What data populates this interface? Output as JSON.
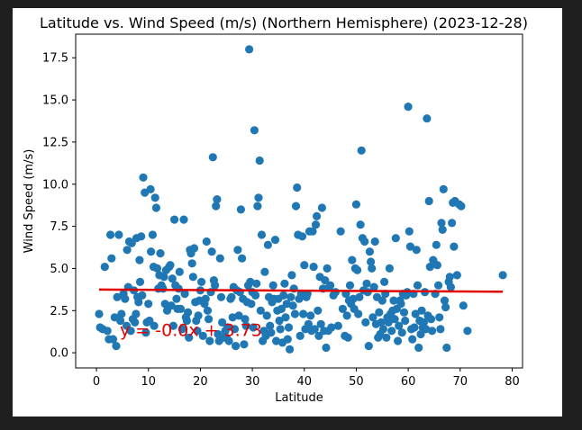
{
  "chart_data": {
    "type": "scatter",
    "title": "Latitude vs. Wind Speed (m/s) (Northern Hemisphere) (2023-12-28)",
    "xlabel": "Latitude",
    "ylabel": "Wind Speed (m/s)",
    "xlim": [
      -4,
      82
    ],
    "ylim": [
      -0.9,
      18.9
    ],
    "xticks": [
      0,
      10,
      20,
      30,
      40,
      50,
      60,
      70,
      80
    ],
    "yticks": [
      0.0,
      2.5,
      5.0,
      7.5,
      10.0,
      12.5,
      15.0,
      17.5
    ],
    "grid": false,
    "marker_color": "#1f77b4",
    "line_color": "#e00000",
    "regression": {
      "equation": "y = -0.0x + 3.73",
      "x_start": 0.5,
      "y_start": 3.75,
      "x_end": 78.2,
      "y_end": 3.62,
      "label_x": 4.5,
      "label_y": 1.0
    },
    "points": [
      [
        0.5,
        2.3
      ],
      [
        0.7,
        1.5
      ],
      [
        1.2,
        1.4
      ],
      [
        1.6,
        5.1
      ],
      [
        2.1,
        1.3
      ],
      [
        2.4,
        0.8
      ],
      [
        2.7,
        7.0
      ],
      [
        2.9,
        5.6
      ],
      [
        3.2,
        0.8
      ],
      [
        3.5,
        2.1
      ],
      [
        3.8,
        0.4
      ],
      [
        4.0,
        3.3
      ],
      [
        4.3,
        7.0
      ],
      [
        4.6,
        1.9
      ],
      [
        4.8,
        2.3
      ],
      [
        5.2,
        3.5
      ],
      [
        5.5,
        3.2
      ],
      [
        5.8,
        1.6
      ],
      [
        5.9,
        6.1
      ],
      [
        6.1,
        3.9
      ],
      [
        6.3,
        6.6
      ],
      [
        6.6,
        1.3
      ],
      [
        6.8,
        6.5
      ],
      [
        7.0,
        2.0
      ],
      [
        7.2,
        3.7
      ],
      [
        7.4,
        1.8
      ],
      [
        7.6,
        2.3
      ],
      [
        7.7,
        6.8
      ],
      [
        7.9,
        3.3
      ],
      [
        8.1,
        3.0
      ],
      [
        8.3,
        5.5
      ],
      [
        8.4,
        4.2
      ],
      [
        8.6,
        6.9
      ],
      [
        8.8,
        3.4
      ],
      [
        9.0,
        10.4
      ],
      [
        9.3,
        9.5
      ],
      [
        9.5,
        1.2
      ],
      [
        9.7,
        1.8
      ],
      [
        10.0,
        2.9
      ],
      [
        10.2,
        1.9
      ],
      [
        10.4,
        9.7
      ],
      [
        10.5,
        6.0
      ],
      [
        10.8,
        7.0
      ],
      [
        11.0,
        5.1
      ],
      [
        11.1,
        1.6
      ],
      [
        11.3,
        9.2
      ],
      [
        11.5,
        8.6
      ],
      [
        11.7,
        5.0
      ],
      [
        11.9,
        3.8
      ],
      [
        12.1,
        4.6
      ],
      [
        12.3,
        5.9
      ],
      [
        12.5,
        4.0
      ],
      [
        12.8,
        3.8
      ],
      [
        13.0,
        4.5
      ],
      [
        13.2,
        2.9
      ],
      [
        13.4,
        4.9
      ],
      [
        13.6,
        2.5
      ],
      [
        13.8,
        2.7
      ],
      [
        14.0,
        5.1
      ],
      [
        14.2,
        5.2
      ],
      [
        14.4,
        2.8
      ],
      [
        14.6,
        4.4
      ],
      [
        14.8,
        1.6
      ],
      [
        15.0,
        7.9
      ],
      [
        15.2,
        4.0
      ],
      [
        15.4,
        3.2
      ],
      [
        15.6,
        2.6
      ],
      [
        15.8,
        3.8
      ],
      [
        16.0,
        4.8
      ],
      [
        16.2,
        2.6
      ],
      [
        16.5,
        1.4
      ],
      [
        16.8,
        7.9
      ],
      [
        17.0,
        3.5
      ],
      [
        17.2,
        2.1
      ],
      [
        17.4,
        1.9
      ],
      [
        17.6,
        2.4
      ],
      [
        17.8,
        0.9
      ],
      [
        18.0,
        6.1
      ],
      [
        18.2,
        5.9
      ],
      [
        18.4,
        5.3
      ],
      [
        18.6,
        4.5
      ],
      [
        18.8,
        6.2
      ],
      [
        19.0,
        3.0
      ],
      [
        19.2,
        1.9
      ],
      [
        19.4,
        1.3
      ],
      [
        19.6,
        2.2
      ],
      [
        19.8,
        3.1
      ],
      [
        20.0,
        3.7
      ],
      [
        20.2,
        4.2
      ],
      [
        20.5,
        1.0
      ],
      [
        20.8,
        2.9
      ],
      [
        21.0,
        3.2
      ],
      [
        21.2,
        6.6
      ],
      [
        21.4,
        2.5
      ],
      [
        21.6,
        2.0
      ],
      [
        21.8,
        0.7
      ],
      [
        22.0,
        3.6
      ],
      [
        22.2,
        6.0
      ],
      [
        22.4,
        11.6
      ],
      [
        22.6,
        4.3
      ],
      [
        22.8,
        4.0
      ],
      [
        23.0,
        8.7
      ],
      [
        23.2,
        9.1
      ],
      [
        23.4,
        1.1
      ],
      [
        23.6,
        0.7
      ],
      [
        23.8,
        5.6
      ],
      [
        24.0,
        3.3
      ],
      [
        24.2,
        1.8
      ],
      [
        24.5,
        0.9
      ],
      [
        24.8,
        1.3
      ],
      [
        25.0,
        0.9
      ],
      [
        25.2,
        1.5
      ],
      [
        25.5,
        0.7
      ],
      [
        25.8,
        3.2
      ],
      [
        26.0,
        3.3
      ],
      [
        26.2,
        2.1
      ],
      [
        26.4,
        3.9
      ],
      [
        26.6,
        1.4
      ],
      [
        26.8,
        0.4
      ],
      [
        27.0,
        3.7
      ],
      [
        27.2,
        6.1
      ],
      [
        27.4,
        2.2
      ],
      [
        27.6,
        3.6
      ],
      [
        27.8,
        8.5
      ],
      [
        28.0,
        5.6
      ],
      [
        28.2,
        3.2
      ],
      [
        28.4,
        0.5
      ],
      [
        28.6,
        2.0
      ],
      [
        28.8,
        1.6
      ],
      [
        29.0,
        3.0
      ],
      [
        29.2,
        4.0
      ],
      [
        29.4,
        18.0
      ],
      [
        29.6,
        4.2
      ],
      [
        29.8,
        2.9
      ],
      [
        30.0,
        3.6
      ],
      [
        30.2,
        1.5
      ],
      [
        30.4,
        13.2
      ],
      [
        30.6,
        3.4
      ],
      [
        30.8,
        4.1
      ],
      [
        31.0,
        8.7
      ],
      [
        31.2,
        9.2
      ],
      [
        31.4,
        11.4
      ],
      [
        31.6,
        2.5
      ],
      [
        31.8,
        7.0
      ],
      [
        32.0,
        0.7
      ],
      [
        32.2,
        1.3
      ],
      [
        32.4,
        4.8
      ],
      [
        32.6,
        1.0
      ],
      [
        32.8,
        2.2
      ],
      [
        33.0,
        6.4
      ],
      [
        33.2,
        3.3
      ],
      [
        33.4,
        1.6
      ],
      [
        33.6,
        1.2
      ],
      [
        33.8,
        3.0
      ],
      [
        34.0,
        4.0
      ],
      [
        34.2,
        3.2
      ],
      [
        34.4,
        6.7
      ],
      [
        34.6,
        0.7
      ],
      [
        34.8,
        2.5
      ],
      [
        35.0,
        3.2
      ],
      [
        35.2,
        1.9
      ],
      [
        35.4,
        1.4
      ],
      [
        35.6,
        2.6
      ],
      [
        35.8,
        0.6
      ],
      [
        36.0,
        3.4
      ],
      [
        36.2,
        4.1
      ],
      [
        36.4,
        2.1
      ],
      [
        36.6,
        2.9
      ],
      [
        36.8,
        0.8
      ],
      [
        37.0,
        1.5
      ],
      [
        37.2,
        0.2
      ],
      [
        37.4,
        3.3
      ],
      [
        37.6,
        4.6
      ],
      [
        37.8,
        2.8
      ],
      [
        38.0,
        3.8
      ],
      [
        38.2,
        2.3
      ],
      [
        38.4,
        8.7
      ],
      [
        38.6,
        9.8
      ],
      [
        38.8,
        7.0
      ],
      [
        39.0,
        3.2
      ],
      [
        39.2,
        1.0
      ],
      [
        39.4,
        3.5
      ],
      [
        39.6,
        6.9
      ],
      [
        39.8,
        2.3
      ],
      [
        40.0,
        5.2
      ],
      [
        40.2,
        1.4
      ],
      [
        40.4,
        3.3
      ],
      [
        40.6,
        3.5
      ],
      [
        40.8,
        1.7
      ],
      [
        41.0,
        7.2
      ],
      [
        41.2,
        2.2
      ],
      [
        41.4,
        1.3
      ],
      [
        41.6,
        7.2
      ],
      [
        41.8,
        5.1
      ],
      [
        42.0,
        1.4
      ],
      [
        42.2,
        7.6
      ],
      [
        42.4,
        8.1
      ],
      [
        42.6,
        2.5
      ],
      [
        42.8,
        1.0
      ],
      [
        43.0,
        4.5
      ],
      [
        43.2,
        1.7
      ],
      [
        43.4,
        8.6
      ],
      [
        43.6,
        3.8
      ],
      [
        43.8,
        1.3
      ],
      [
        44.0,
        4.3
      ],
      [
        44.2,
        0.3
      ],
      [
        44.4,
        5.0
      ],
      [
        44.6,
        1.3
      ],
      [
        44.8,
        3.9
      ],
      [
        45.0,
        4.0
      ],
      [
        45.2,
        1.5
      ],
      [
        45.6,
        3.4
      ],
      [
        46.0,
        3.6
      ],
      [
        46.5,
        1.6
      ],
      [
        47.0,
        7.2
      ],
      [
        47.4,
        2.6
      ],
      [
        47.8,
        1.0
      ],
      [
        48.0,
        3.5
      ],
      [
        48.2,
        2.2
      ],
      [
        48.4,
        0.9
      ],
      [
        48.6,
        3.1
      ],
      [
        48.8,
        4.0
      ],
      [
        49.0,
        2.9
      ],
      [
        49.2,
        5.5
      ],
      [
        49.4,
        3.2
      ],
      [
        49.6,
        2.6
      ],
      [
        49.8,
        5.0
      ],
      [
        50.0,
        8.8
      ],
      [
        50.2,
        4.9
      ],
      [
        50.4,
        2.3
      ],
      [
        50.6,
        3.3
      ],
      [
        50.8,
        7.6
      ],
      [
        51.0,
        12.0
      ],
      [
        51.2,
        6.8
      ],
      [
        51.4,
        3.7
      ],
      [
        51.6,
        6.6
      ],
      [
        51.8,
        1.8
      ],
      [
        52.0,
        4.1
      ],
      [
        52.2,
        3.6
      ],
      [
        52.4,
        0.4
      ],
      [
        52.6,
        6.0
      ],
      [
        52.8,
        5.4
      ],
      [
        53.0,
        5.0
      ],
      [
        53.2,
        2.1
      ],
      [
        53.4,
        3.9
      ],
      [
        53.6,
        6.6
      ],
      [
        53.8,
        1.7
      ],
      [
        54.0,
        3.3
      ],
      [
        54.2,
        0.9
      ],
      [
        54.4,
        2.4
      ],
      [
        54.6,
        1.1
      ],
      [
        54.8,
        1.8
      ],
      [
        55.0,
        3.1
      ],
      [
        55.2,
        1.4
      ],
      [
        55.4,
        4.2
      ],
      [
        55.6,
        3.5
      ],
      [
        55.8,
        0.9
      ],
      [
        56.0,
        2.1
      ],
      [
        56.2,
        1.8
      ],
      [
        56.4,
        5.0
      ],
      [
        56.6,
        2.3
      ],
      [
        56.8,
        1.3
      ],
      [
        57.0,
        2.5
      ],
      [
        57.2,
        3.1
      ],
      [
        57.4,
        2.0
      ],
      [
        57.6,
        6.8
      ],
      [
        57.8,
        2.6
      ],
      [
        58.0,
        0.7
      ],
      [
        58.2,
        1.6
      ],
      [
        58.4,
        3.1
      ],
      [
        58.6,
        2.9
      ],
      [
        58.8,
        1.2
      ],
      [
        59.0,
        3.5
      ],
      [
        59.2,
        2.4
      ],
      [
        59.4,
        1.9
      ],
      [
        59.6,
        3.4
      ],
      [
        59.8,
        3.6
      ],
      [
        60.0,
        14.6
      ],
      [
        60.2,
        7.2
      ],
      [
        60.4,
        6.3
      ],
      [
        60.6,
        1.4
      ],
      [
        60.8,
        0.8
      ],
      [
        61.0,
        3.5
      ],
      [
        61.2,
        1.5
      ],
      [
        61.4,
        2.3
      ],
      [
        61.6,
        6.1
      ],
      [
        61.8,
        4.0
      ],
      [
        62.0,
        0.3
      ],
      [
        62.2,
        1.9
      ],
      [
        62.4,
        1.1
      ],
      [
        62.6,
        2.5
      ],
      [
        62.8,
        1.5
      ],
      [
        63.0,
        1.8
      ],
      [
        63.2,
        3.6
      ],
      [
        63.4,
        1.4
      ],
      [
        63.6,
        13.9
      ],
      [
        63.8,
        2.2
      ],
      [
        64.0,
        9.0
      ],
      [
        64.2,
        5.1
      ],
      [
        64.4,
        2.0
      ],
      [
        64.6,
        1.3
      ],
      [
        64.8,
        5.5
      ],
      [
        65.0,
        5.3
      ],
      [
        65.2,
        3.5
      ],
      [
        65.4,
        6.4
      ],
      [
        65.6,
        5.2
      ],
      [
        65.8,
        4.0
      ],
      [
        66.0,
        2.1
      ],
      [
        66.2,
        1.4
      ],
      [
        66.4,
        7.7
      ],
      [
        66.6,
        7.3
      ],
      [
        66.8,
        9.7
      ],
      [
        67.0,
        3.1
      ],
      [
        67.2,
        2.7
      ],
      [
        67.4,
        0.3
      ],
      [
        67.8,
        4.2
      ],
      [
        68.0,
        4.5
      ],
      [
        68.2,
        3.9
      ],
      [
        68.4,
        7.7
      ],
      [
        68.6,
        8.9
      ],
      [
        68.8,
        6.3
      ],
      [
        69.0,
        9.0
      ],
      [
        69.4,
        4.6
      ],
      [
        69.8,
        8.8
      ],
      [
        70.2,
        8.7
      ],
      [
        70.6,
        2.8
      ],
      [
        71.4,
        1.3
      ],
      [
        78.2,
        4.6
      ]
    ]
  }
}
